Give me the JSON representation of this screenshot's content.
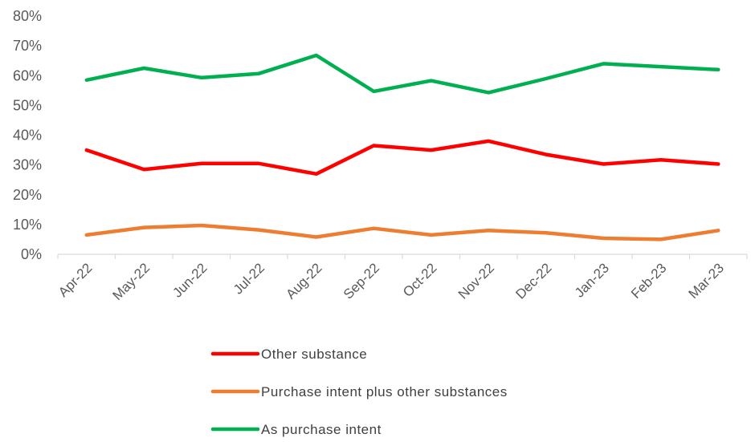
{
  "chart_data": {
    "type": "line",
    "title": "",
    "xlabel": "",
    "ylabel": "",
    "categories": [
      "Apr-22",
      "May-22",
      "Jun-22",
      "Jul-22",
      "Aug-22",
      "Sep-22",
      "Oct-22",
      "Nov-22",
      "Dec-22",
      "Jan-23",
      "Feb-23",
      "Mar-23"
    ],
    "ylim": [
      0,
      80
    ],
    "y_ticks": [
      0,
      10,
      20,
      30,
      40,
      50,
      60,
      70,
      80
    ],
    "y_tick_labels": [
      "0%",
      "10%",
      "20%",
      "30%",
      "40%",
      "50%",
      "60%",
      "70%",
      "80%"
    ],
    "grid": false,
    "legend_position": "bottom",
    "series": [
      {
        "name": "Other substance",
        "color": "#ff0000",
        "values": [
          35,
          28.5,
          30.5,
          30.5,
          27,
          36.5,
          35,
          38,
          33.5,
          30.3,
          31.7,
          30.3
        ]
      },
      {
        "name": "Purchase intent plus other substances",
        "color": "#ed7d31",
        "values": [
          6.5,
          9,
          9.7,
          8.2,
          5.8,
          8.7,
          6.5,
          8,
          7.2,
          5.4,
          5,
          8
        ]
      },
      {
        "name": "As purchase intent",
        "color": "#00b050",
        "values": [
          58.5,
          62.5,
          59.3,
          60.7,
          66.8,
          54.7,
          58.3,
          54.3,
          59,
          64,
          63,
          62
        ]
      }
    ]
  }
}
